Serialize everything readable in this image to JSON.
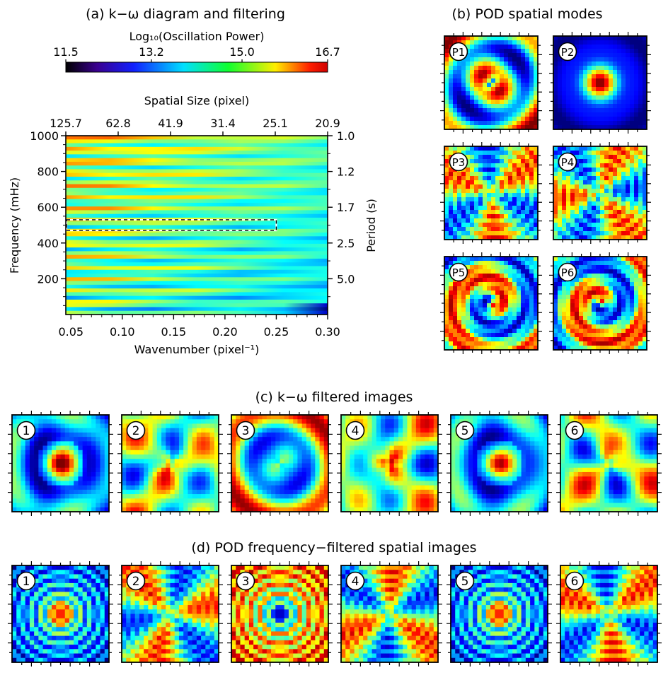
{
  "panel_a": {
    "title": "(a) k−ω diagram and filtering",
    "colorbar": {
      "label": "Log₁₀(Oscillation Power)",
      "min": 11.5,
      "max": 16.7,
      "ticks": [
        "11.5",
        "13.2",
        "15.0",
        "16.7"
      ],
      "tick_values": [
        11.5,
        13.2,
        15.0,
        16.7
      ],
      "colormap": "jet"
    },
    "top_axis_label": "Spatial Size (pixel)",
    "top_ticks": [
      "125.7",
      "62.8",
      "41.9",
      "31.4",
      "25.1",
      "20.9"
    ],
    "right_axis_label": "Period (s)",
    "right_ticks": [
      "1.0",
      "1.2",
      "1.7",
      "2.5",
      "5.0"
    ]
  },
  "chart_data": {
    "type": "heatmap",
    "xlabel": "Wavenumber (pixel⁻¹)",
    "ylabel": "Frequency (mHz)",
    "xlim": [
      0.045,
      0.3
    ],
    "ylim": [
      0,
      1000
    ],
    "x_ticks": [
      "0.05",
      "0.10",
      "0.15",
      "0.20",
      "0.25",
      "0.30"
    ],
    "x_tick_values": [
      0.05,
      0.1,
      0.15,
      0.2,
      0.25,
      0.3
    ],
    "y_ticks": [
      "200",
      "400",
      "600",
      "800",
      "1000"
    ],
    "y_tick_values": [
      200,
      400,
      600,
      800,
      1000
    ],
    "filter_box": {
      "k_range": [
        0.045,
        0.25
      ],
      "f_range_mHz": [
        470,
        530
      ]
    },
    "colormap": "jet"
  },
  "panel_b": {
    "title": "(b) POD spatial modes",
    "modes": [
      {
        "label": "P1",
        "pattern": "ring"
      },
      {
        "label": "P2",
        "pattern": "center"
      },
      {
        "label": "P3",
        "pattern": "tri"
      },
      {
        "label": "P4",
        "pattern": "tri"
      },
      {
        "label": "P5",
        "pattern": "spiral"
      },
      {
        "label": "P6",
        "pattern": "spiral"
      }
    ]
  },
  "panel_c": {
    "title": "(c) k−ω filtered images",
    "images": [
      {
        "label": "1",
        "pattern": "blob_center"
      },
      {
        "label": "2",
        "pattern": "blob_quad"
      },
      {
        "label": "3",
        "pattern": "blob_ring"
      },
      {
        "label": "4",
        "pattern": "blob_quad"
      },
      {
        "label": "5",
        "pattern": "blob_center"
      },
      {
        "label": "6",
        "pattern": "blob_quad"
      }
    ]
  },
  "panel_d": {
    "title": "(d) POD frequency−filtered spatial images",
    "images": [
      {
        "label": "1",
        "pattern": "rings_center"
      },
      {
        "label": "2",
        "pattern": "tri_wave"
      },
      {
        "label": "3",
        "pattern": "rings_ring"
      },
      {
        "label": "4",
        "pattern": "tri_wave"
      },
      {
        "label": "5",
        "pattern": "rings_center"
      },
      {
        "label": "6",
        "pattern": "tri_wave"
      }
    ]
  }
}
